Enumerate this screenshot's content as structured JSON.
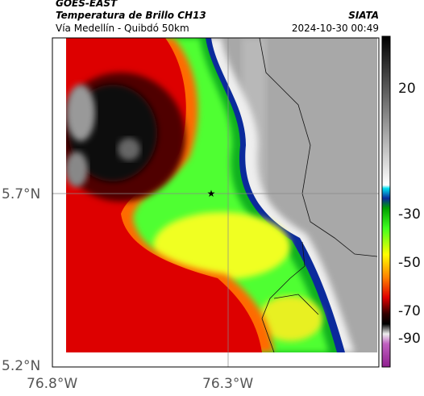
{
  "header": {
    "satellite": "GOES-EAST",
    "title": "Temperatura de Brillo CH13",
    "subtitle": "Vía Medellín - Quibdó 50km",
    "source": "SIATA",
    "datetime": "2024-10-30 00:49"
  },
  "axes": {
    "lat": [
      "5.7°N",
      "5.2°N"
    ],
    "lon": [
      "76.8°W",
      "76.3°W"
    ]
  },
  "colorbar": {
    "ticks": [
      "20",
      "-30",
      "-50",
      "-70",
      "-90"
    ]
  }
}
